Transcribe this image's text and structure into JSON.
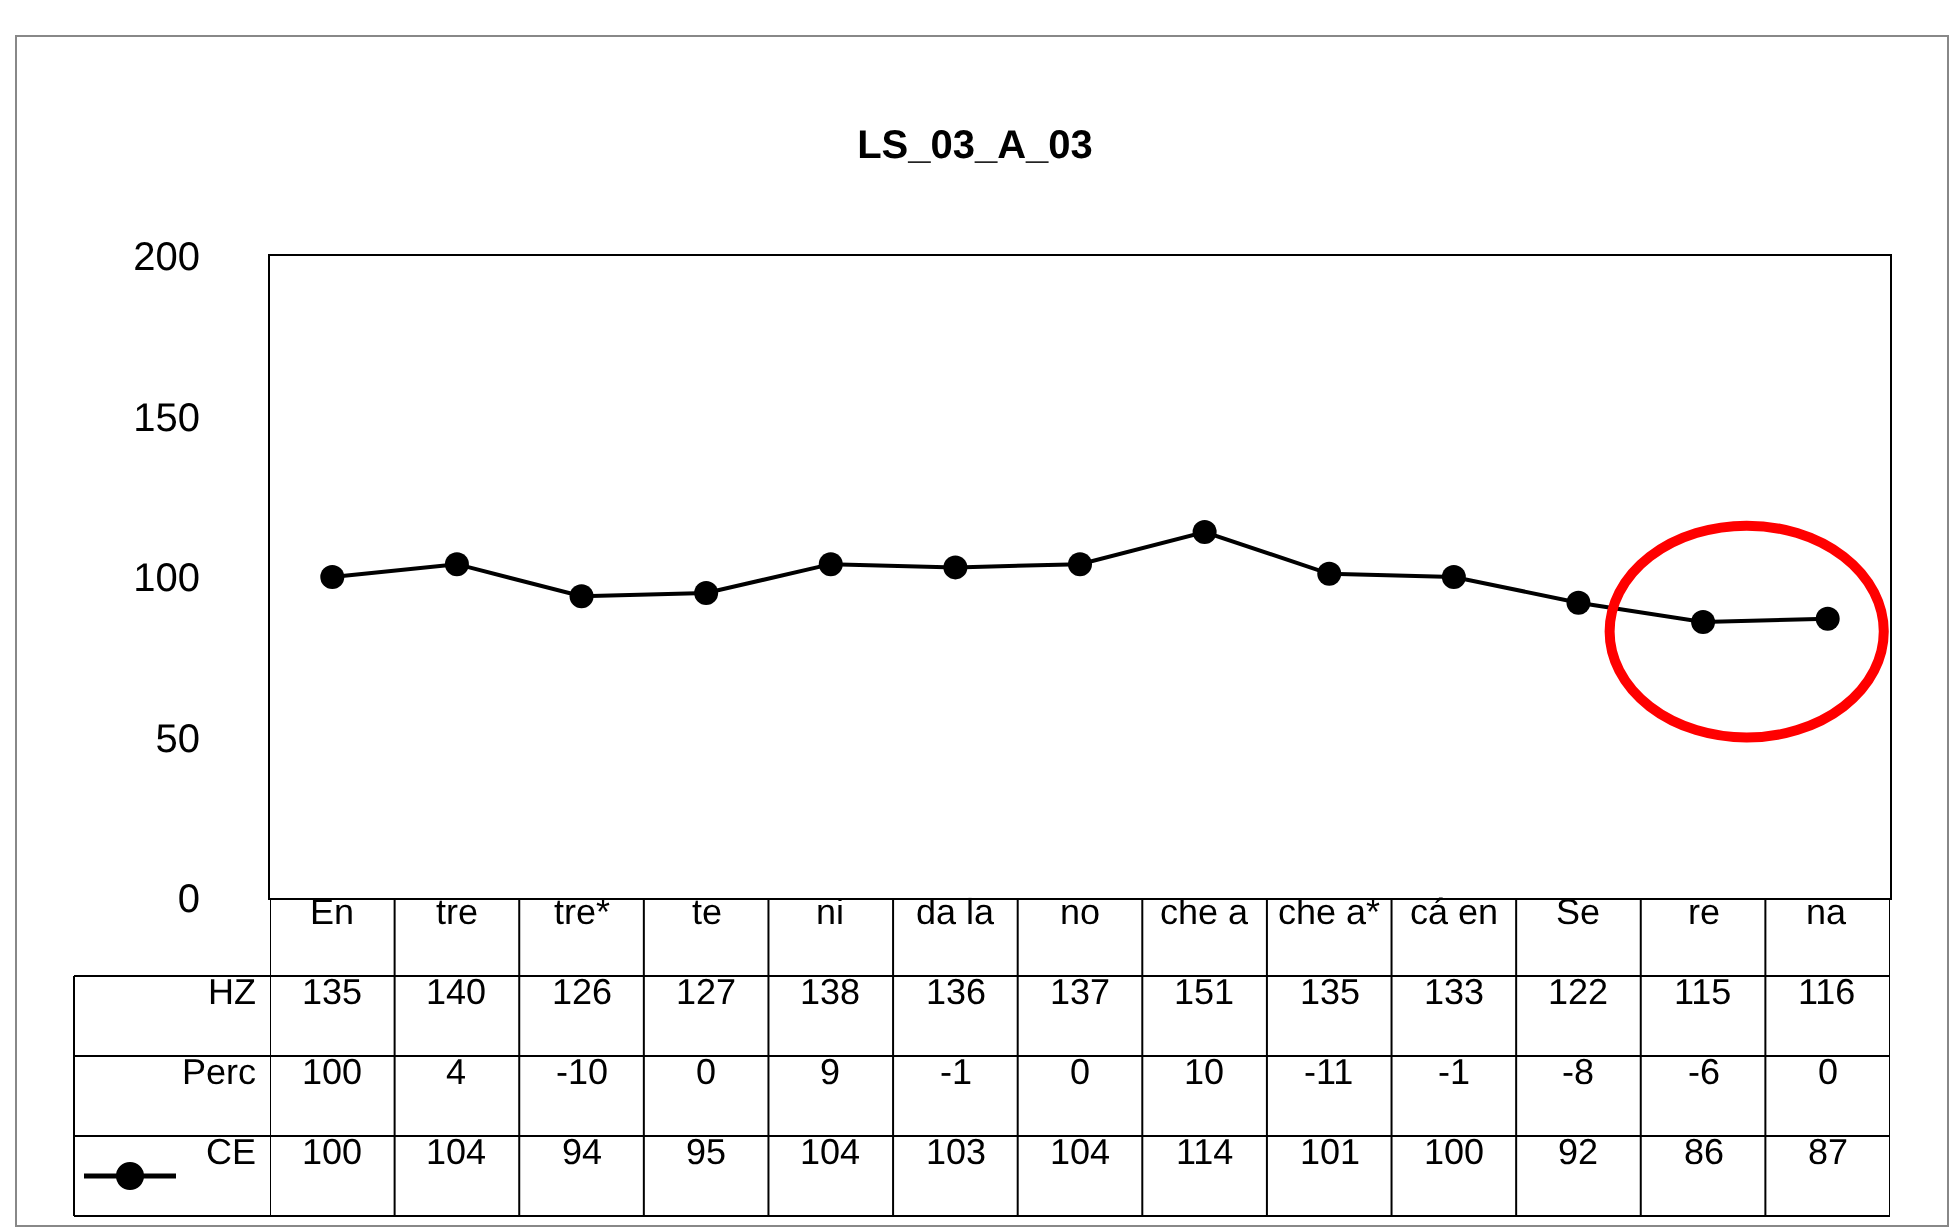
{
  "chart_data": {
    "type": "line",
    "title": "LS_03_A_03",
    "categories": [
      "En",
      "tre",
      "tre*",
      "te",
      "ni",
      "da la",
      "no",
      "che a",
      "che a*",
      "cá en",
      "Se",
      "re",
      "na"
    ],
    "series": [
      {
        "name": "CE",
        "color": "#000000",
        "values": [
          100,
          104,
          94,
          95,
          104,
          103,
          104,
          114,
          101,
          100,
          92,
          86,
          87
        ]
      }
    ],
    "ylim": [
      0,
      200
    ],
    "yticks": [
      0,
      50,
      100,
      150,
      200
    ],
    "marker": "circle",
    "line_style": "solid",
    "data_labels": true,
    "annotations": [
      "HZ",
      "135",
      "140",
      "126",
      "127",
      "138",
      "136",
      "137",
      "151",
      "135",
      "133",
      "122",
      "115",
      "116",
      "Perc",
      "100",
      "4",
      "-10",
      "0",
      "9",
      "-1",
      "0",
      "10",
      "-11",
      "-1",
      "-8",
      "-6",
      "0"
    ]
  }
}
